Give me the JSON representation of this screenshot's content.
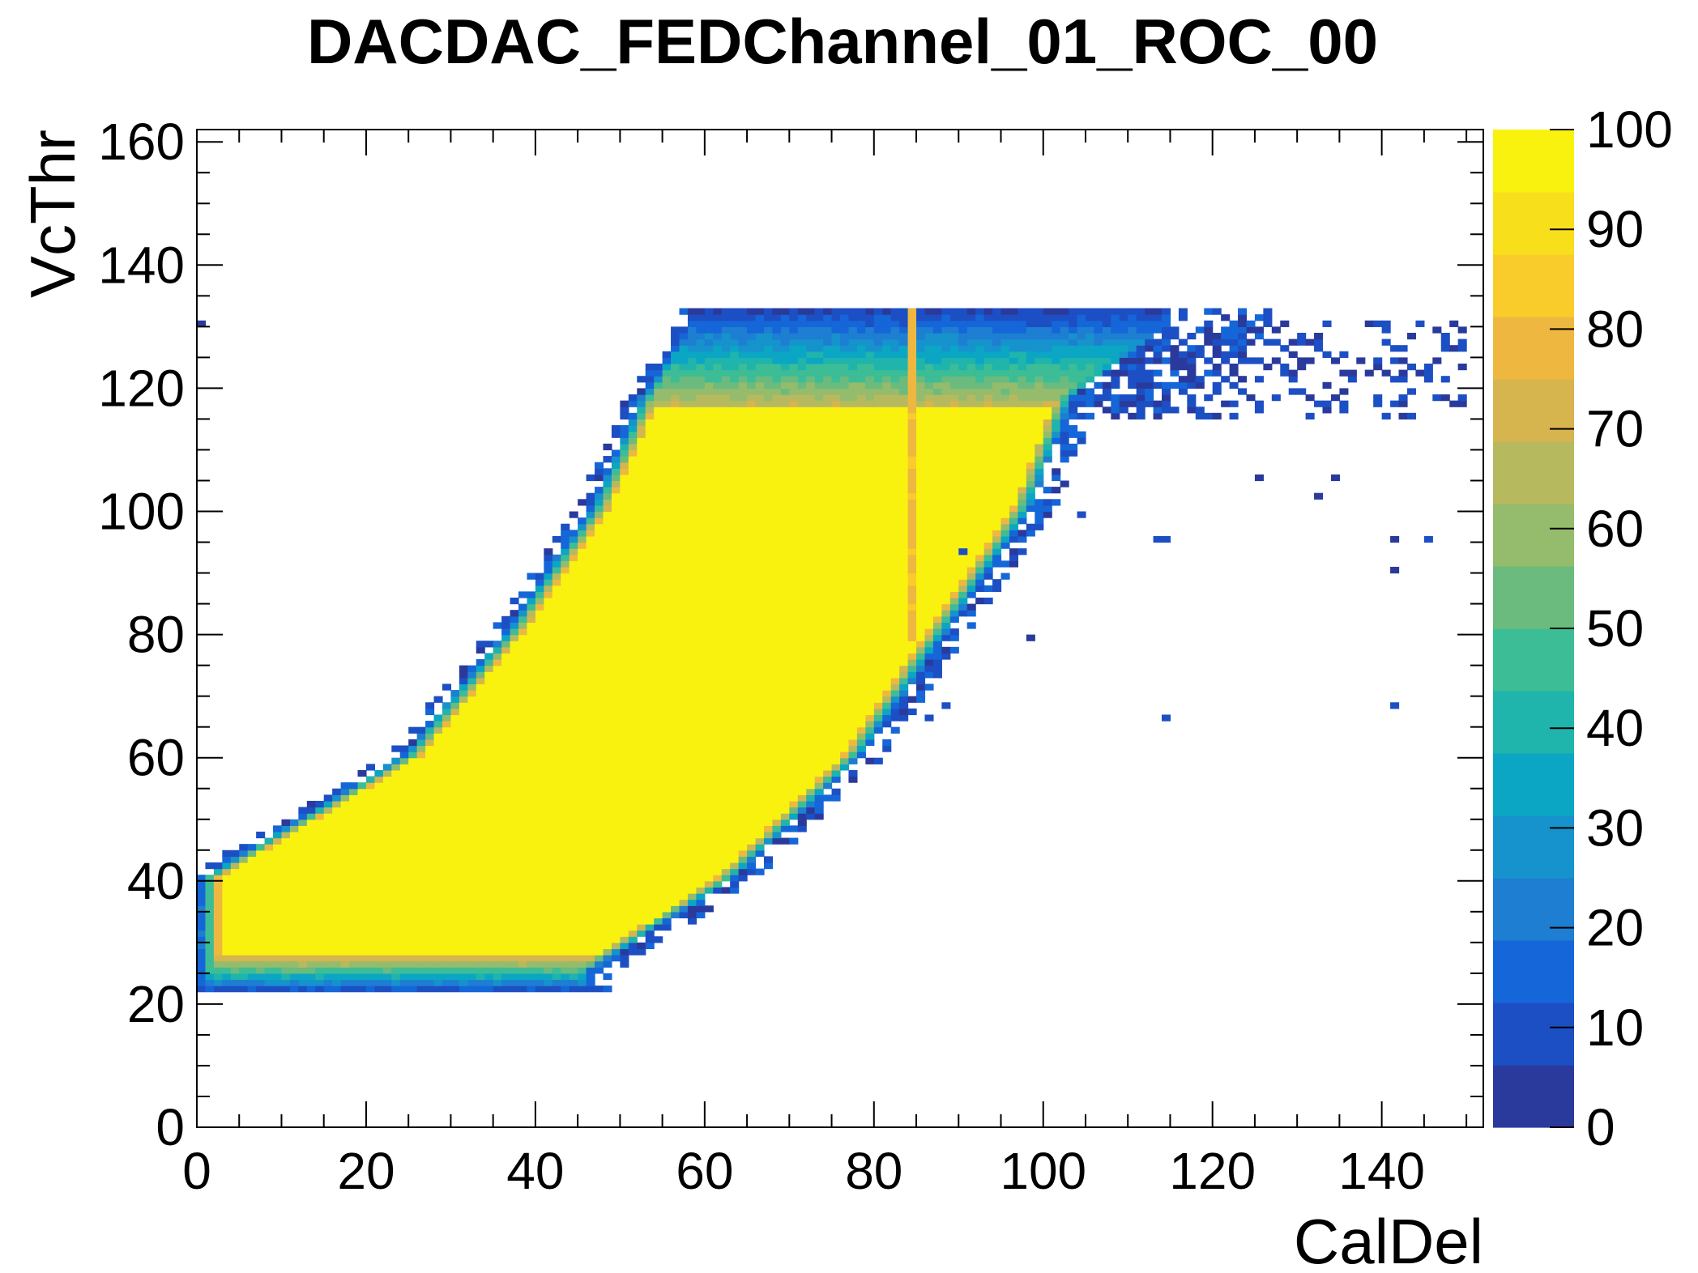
{
  "chart_data": {
    "type": "heatmap",
    "title": "DACDAC_FEDChannel_01_ROC_00",
    "xlabel": "CalDel",
    "ylabel": "VcThr",
    "xlim": [
      0,
      152
    ],
    "ylim": [
      0,
      162
    ],
    "x_ticks": [
      "0",
      "20",
      "40",
      "60",
      "80",
      "100",
      "120",
      "140"
    ],
    "y_ticks": [
      "0",
      "20",
      "40",
      "60",
      "80",
      "100",
      "120",
      "140",
      "160"
    ],
    "z_range": [
      0,
      100
    ],
    "z_ticks": [
      "0",
      "10",
      "20",
      "30",
      "40",
      "50",
      "60",
      "70",
      "80",
      "90",
      "100"
    ],
    "colormap": [
      "#2a3a9c",
      "#1d4fc4",
      "#1566d8",
      "#1d7ed2",
      "#1692cc",
      "#0ba6c4",
      "#1fb4ac",
      "#3dbd96",
      "#6abb7d",
      "#94bc6c",
      "#b7b95f",
      "#d6b44e",
      "#eeb840",
      "#f9cc2b",
      "#f8df1c",
      "#f9f20f"
    ],
    "band": {
      "description_points": [
        {
          "VcThr": 25,
          "CalDel_left": 0,
          "CalDel_right": 46
        },
        {
          "VcThr": 40,
          "CalDel_left": 0,
          "CalDel_right": 63
        },
        {
          "VcThr": 60,
          "CalDel_left": 24,
          "CalDel_right": 78
        },
        {
          "VcThr": 80,
          "CalDel_left": 36,
          "CalDel_right": 88
        },
        {
          "VcThr": 100,
          "CalDel_left": 46,
          "CalDel_right": 98
        },
        {
          "VcThr": 118,
          "CalDel_left": 52,
          "CalDel_right": 103
        },
        {
          "VcThr": 130,
          "CalDel_left": 58,
          "CalDel_right": 114
        }
      ],
      "plateau_value": 100,
      "vertical_stripe_CalDel": 84,
      "vertical_stripe_value": 82
    },
    "outliers": [
      {
        "x": 0,
        "y": 130,
        "v": 5
      },
      {
        "x": 104,
        "y": 99,
        "v": 10
      },
      {
        "x": 90,
        "y": 93,
        "v": 12
      },
      {
        "x": 98,
        "y": 79,
        "v": 6
      },
      {
        "x": 114,
        "y": 66,
        "v": 10
      },
      {
        "x": 141,
        "y": 68,
        "v": 8
      },
      {
        "x": 141,
        "y": 90,
        "v": 6
      },
      {
        "x": 145,
        "y": 95,
        "v": 8
      },
      {
        "x": 141,
        "y": 95,
        "v": 6
      },
      {
        "x": 125,
        "y": 105,
        "v": 6
      },
      {
        "x": 134,
        "y": 105,
        "v": 6
      },
      {
        "x": 132,
        "y": 102,
        "v": 6
      },
      {
        "x": 113,
        "y": 95,
        "v": 8
      },
      {
        "x": 114,
        "y": 95,
        "v": 8
      },
      {
        "x": 86,
        "y": 66,
        "v": 12
      },
      {
        "x": 88,
        "y": 68,
        "v": 12
      }
    ]
  }
}
